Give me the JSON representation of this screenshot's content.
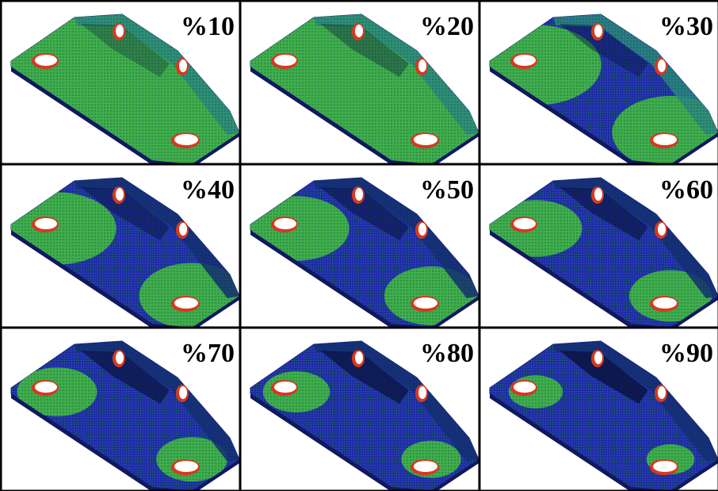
{
  "panels": [
    {
      "label": "%10"
    },
    {
      "label": "%20"
    },
    {
      "label": "%30"
    },
    {
      "label": "%40"
    },
    {
      "label": "%50"
    },
    {
      "label": "%60"
    },
    {
      "label": "%70"
    },
    {
      "label": "%80"
    },
    {
      "label": "%90"
    }
  ]
}
